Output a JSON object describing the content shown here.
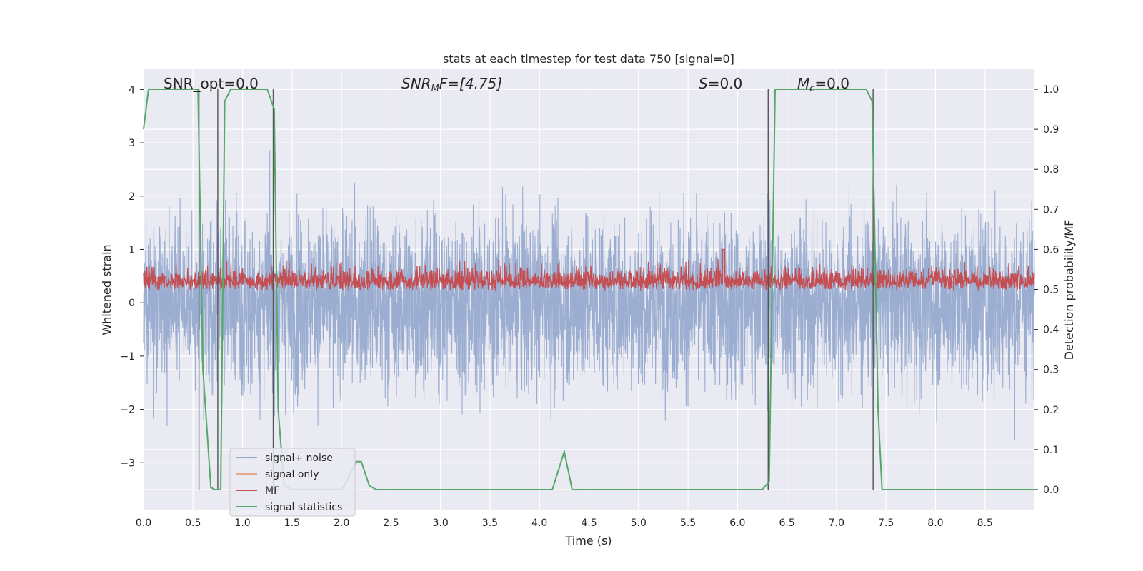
{
  "chart_data": {
    "type": "line",
    "title": "stats at each timestep for test data 750 [signal=0]",
    "xlabel": "Time (s)",
    "ylabel": "Whitened strain",
    "y2label": "Detection probability/MF",
    "xlim": [
      0,
      9.0
    ],
    "ylim": [
      -3.88,
      4.38
    ],
    "y2lim": [
      -0.05,
      1.05
    ],
    "xticks": [
      "0.0",
      "0.5",
      "1.0",
      "1.5",
      "2.0",
      "2.5",
      "3.0",
      "3.5",
      "4.0",
      "4.5",
      "5.0",
      "5.5",
      "6.0",
      "6.5",
      "7.0",
      "7.5",
      "8.0",
      "8.5"
    ],
    "yticks": [
      "4",
      "3",
      "2",
      "1",
      "0",
      "−1",
      "−2",
      "−3"
    ],
    "y2ticks": [
      "1.0",
      "0.9",
      "0.8",
      "0.7",
      "0.6",
      "0.5",
      "0.4",
      "0.3",
      "0.2",
      "0.1",
      "0.0"
    ],
    "grid": true,
    "legend_position": "lower-left",
    "annotations": {
      "snr_opt": "SNR_opt=0.0",
      "snr_mf_label": "SNR",
      "snr_mf_sub": "M",
      "snr_mf_rest": "F=[4.75]",
      "s_label": "S",
      "s_rest": "=0.0",
      "mc_label": "M",
      "mc_sub": "c",
      "mc_rest": "=0.0"
    },
    "series": [
      {
        "name": "signal+ noise",
        "color": "#92a6cc",
        "note_values": "Gaussian whitened noise, amplitude about +/-3.3"
      },
      {
        "name": "signal only",
        "color": "#e8a98a"
      },
      {
        "name": "MF",
        "color": "#c44e52",
        "baseline": 0.24,
        "spread": 0.3
      },
      {
        "name": "signal statistics",
        "color": "#55a868",
        "axis": "right",
        "x": [
          0.0,
          0.05,
          0.55,
          0.6,
          0.68,
          0.72,
          0.78,
          0.82,
          0.88,
          1.25,
          1.32,
          1.36,
          1.42,
          1.5,
          2.0,
          2.05,
          2.15,
          2.2,
          2.28,
          2.35,
          4.13,
          4.25,
          4.33,
          6.25,
          6.32,
          6.38,
          7.3,
          7.36,
          7.42,
          7.46,
          9.0
        ],
        "values": [
          0.9,
          1.0,
          1.0,
          0.3,
          0.005,
          0.0,
          0.0,
          0.97,
          1.0,
          1.0,
          0.95,
          0.2,
          0.01,
          0.0,
          0.0,
          0.02,
          0.07,
          0.07,
          0.01,
          0.0,
          0.0,
          0.095,
          0.0,
          0.0,
          0.02,
          1.0,
          1.0,
          0.97,
          0.2,
          0.0,
          0.0
        ]
      }
    ],
    "vertical_lines_s": [
      0.56,
      0.75,
      1.31,
      6.31,
      7.37
    ]
  },
  "colors": {
    "axes_bg": "#eaeaf2",
    "grid": "#ffffff",
    "noise": "#92a6cc",
    "mf": "#c44e52",
    "stat": "#55a868",
    "vline": "#555555"
  }
}
